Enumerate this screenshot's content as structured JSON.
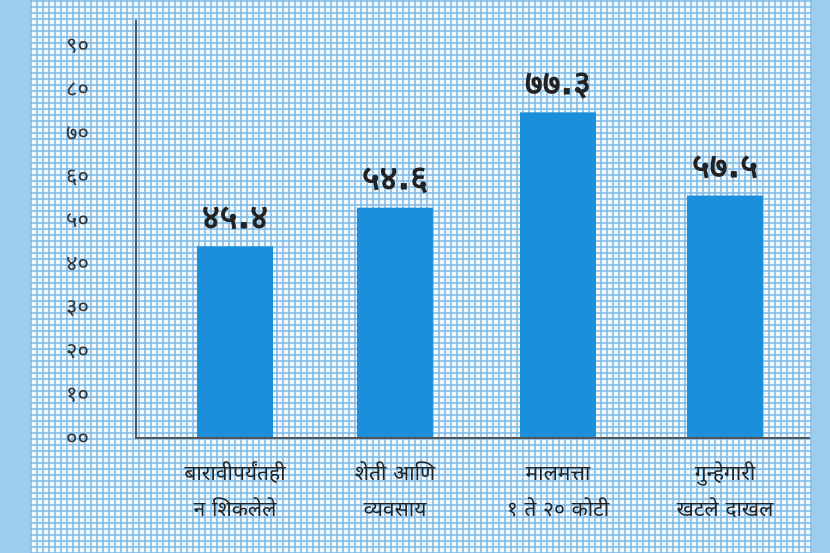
{
  "chart_data": {
    "type": "bar",
    "title": "",
    "xlabel": "",
    "ylabel": "",
    "ylim": [
      0,
      90
    ],
    "grid": true,
    "y_ticks": [
      "००",
      "१०",
      "२०",
      "३०",
      "४०",
      "५०",
      "६०",
      "७०",
      "८०",
      "९०"
    ],
    "y_tick_values": [
      0,
      10,
      20,
      30,
      40,
      50,
      60,
      70,
      80,
      90
    ],
    "categories": [
      [
        "बारावीपर्यंतही",
        "न शिकलेले"
      ],
      [
        "शेती आणि",
        "व्यवसाय"
      ],
      [
        "मालमत्ता",
        "१ ते २० कोटी"
      ],
      [
        "गुन्हेगारी",
        "खटले दाखल"
      ]
    ],
    "values": [
      45.4,
      54.6,
      77.3,
      57.5
    ],
    "value_labels": [
      "४५.४",
      "५४.६",
      "७७.३",
      "५७.५"
    ],
    "bar_color": "#1b8fd9"
  }
}
